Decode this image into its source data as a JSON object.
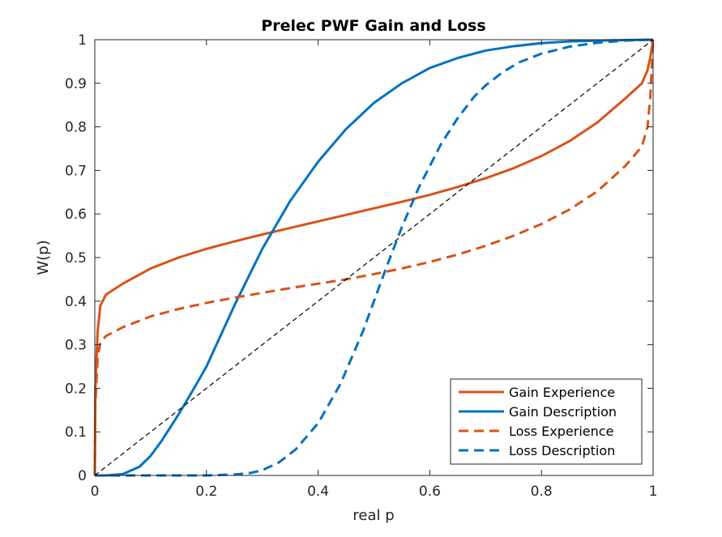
{
  "chart_data": {
    "type": "line",
    "title": "Prelec PWF Gain and Loss",
    "xlabel": "real p",
    "ylabel": "W(p)",
    "xlim": [
      0,
      1
    ],
    "ylim": [
      0,
      1
    ],
    "xticks": [
      "0",
      "0.2",
      "0.4",
      "0.6",
      "0.8",
      "1"
    ],
    "yticks": [
      "0",
      "0.1",
      "0.2",
      "0.3",
      "0.4",
      "0.5",
      "0.6",
      "0.7",
      "0.8",
      "0.9",
      "1"
    ],
    "grid": false,
    "legend_position": "bottom-right",
    "series": [
      {
        "name": "Gain Experience",
        "color": "#D95319",
        "style": "solid",
        "x": [
          0,
          0.001,
          0.005,
          0.01,
          0.02,
          0.05,
          0.1,
          0.15,
          0.2,
          0.25,
          0.3,
          0.35,
          0.4,
          0.45,
          0.5,
          0.55,
          0.6,
          0.65,
          0.7,
          0.75,
          0.8,
          0.85,
          0.9,
          0.95,
          0.98,
          0.99,
          0.995,
          1
        ],
        "y": [
          0,
          0.2,
          0.33,
          0.39,
          0.415,
          0.44,
          0.475,
          0.5,
          0.52,
          0.537,
          0.553,
          0.568,
          0.583,
          0.598,
          0.613,
          0.628,
          0.644,
          0.662,
          0.682,
          0.705,
          0.733,
          0.767,
          0.81,
          0.865,
          0.9,
          0.93,
          0.96,
          1
        ]
      },
      {
        "name": "Gain Description",
        "color": "#0072BD",
        "style": "solid",
        "x": [
          0,
          0.02,
          0.05,
          0.08,
          0.1,
          0.12,
          0.15,
          0.18,
          0.2,
          0.25,
          0.3,
          0.35,
          0.4,
          0.45,
          0.5,
          0.55,
          0.6,
          0.65,
          0.7,
          0.75,
          0.8,
          0.85,
          0.9,
          0.95,
          1
        ],
        "y": [
          0,
          0.0,
          0.003,
          0.02,
          0.045,
          0.08,
          0.14,
          0.205,
          0.25,
          0.39,
          0.52,
          0.63,
          0.72,
          0.795,
          0.855,
          0.9,
          0.935,
          0.958,
          0.975,
          0.985,
          0.992,
          0.996,
          0.998,
          0.999,
          1
        ]
      },
      {
        "name": "Loss Experience",
        "color": "#D95319",
        "style": "dashed",
        "x": [
          0,
          0.001,
          0.005,
          0.01,
          0.02,
          0.05,
          0.1,
          0.15,
          0.2,
          0.25,
          0.3,
          0.35,
          0.4,
          0.45,
          0.5,
          0.55,
          0.6,
          0.65,
          0.7,
          0.75,
          0.8,
          0.85,
          0.9,
          0.95,
          0.98,
          0.99,
          0.995,
          1
        ],
        "y": [
          0,
          0.16,
          0.27,
          0.305,
          0.32,
          0.34,
          0.365,
          0.382,
          0.396,
          0.408,
          0.419,
          0.43,
          0.44,
          0.45,
          0.462,
          0.475,
          0.49,
          0.507,
          0.527,
          0.55,
          0.577,
          0.61,
          0.652,
          0.71,
          0.755,
          0.8,
          0.87,
          1
        ]
      },
      {
        "name": "Loss Description",
        "color": "#0072BD",
        "style": "dashed",
        "x": [
          0,
          0.2,
          0.25,
          0.28,
          0.3,
          0.33,
          0.36,
          0.4,
          0.44,
          0.48,
          0.5,
          0.52,
          0.55,
          0.58,
          0.6,
          0.62,
          0.65,
          0.68,
          0.7,
          0.73,
          0.76,
          0.8,
          0.85,
          0.9,
          0.95,
          1
        ],
        "y": [
          0,
          0.0,
          0.002,
          0.006,
          0.012,
          0.03,
          0.06,
          0.12,
          0.21,
          0.33,
          0.4,
          0.47,
          0.57,
          0.66,
          0.71,
          0.76,
          0.82,
          0.87,
          0.895,
          0.925,
          0.948,
          0.968,
          0.984,
          0.993,
          0.998,
          1
        ]
      },
      {
        "name": "",
        "color": "#000000",
        "style": "reference-dashed",
        "x": [
          0,
          1
        ],
        "y": [
          0,
          1
        ]
      }
    ],
    "legend": [
      "Gain Experience",
      "Gain Description",
      "Loss Experience",
      "Loss Description"
    ]
  }
}
